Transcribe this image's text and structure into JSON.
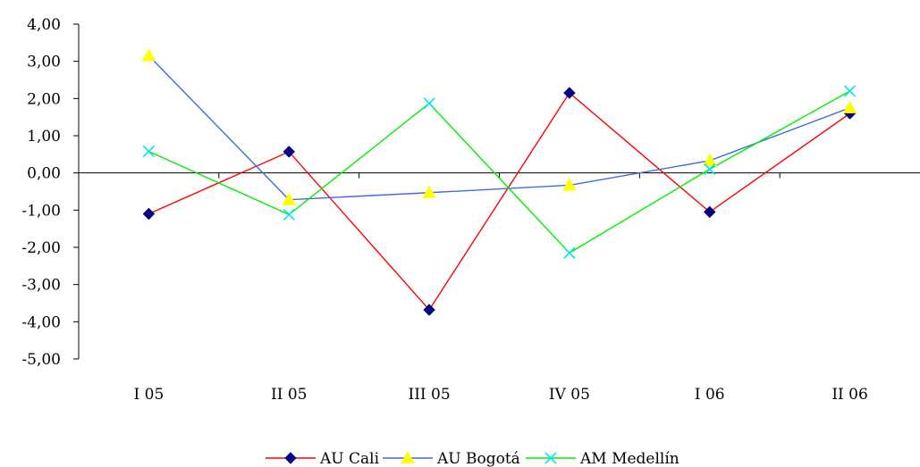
{
  "chart_data": {
    "type": "line",
    "title": "",
    "xlabel": "",
    "ylabel": "",
    "categories": [
      "I 05",
      "II 05",
      "III 05",
      "IV 05",
      "I 06",
      "II 06"
    ],
    "ylim": [
      -5,
      4
    ],
    "yticks": [
      4,
      3,
      2,
      1,
      0,
      -1,
      -2,
      -3,
      -4,
      -5
    ],
    "ytick_labels": [
      "4,00",
      "3,00",
      "2,00",
      "1,00",
      "0,00",
      "-1,00",
      "-2,00",
      "-3,00",
      "-4,00",
      "-5,00"
    ],
    "grid": false,
    "legend_position": "bottom",
    "series": [
      {
        "name": "AU Cali",
        "color": "#ff0000",
        "marker": "diamond",
        "marker_color": "#000080",
        "values": [
          -1.1,
          0.57,
          -3.68,
          2.15,
          -1.05,
          1.6
        ]
      },
      {
        "name": "AU Bogotá",
        "color": "#4169e1",
        "marker": "triangle",
        "marker_color": "#ffff00",
        "values": [
          3.15,
          -0.72,
          -0.53,
          -0.33,
          0.33,
          1.75
        ]
      },
      {
        "name": "AM Medellín",
        "color": "#00ee00",
        "marker": "x",
        "marker_color": "#00e5ee",
        "values": [
          0.58,
          -1.12,
          1.87,
          -2.15,
          0.1,
          2.2
        ]
      }
    ]
  }
}
